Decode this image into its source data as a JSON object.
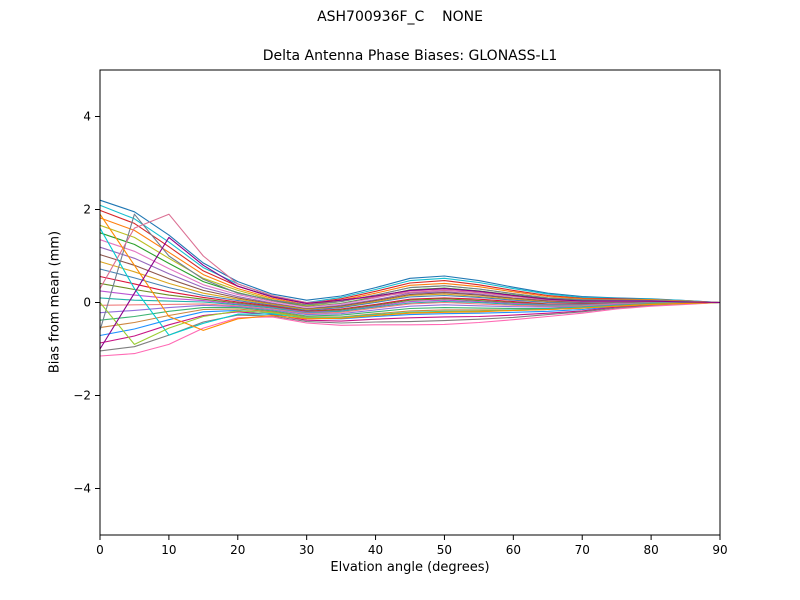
{
  "chart_data": {
    "type": "line",
    "title": "ASH700936F_C    NONE",
    "axes_title": "Delta Antenna Phase Biases: GLONASS-L1",
    "xlabel": "Elvation angle (degrees)",
    "ylabel": "Bias from mean (mm)",
    "xlim": [
      0,
      90
    ],
    "ylim": [
      -5,
      5
    ],
    "xticks": [
      0,
      10,
      20,
      30,
      40,
      50,
      60,
      70,
      80,
      90
    ],
    "yticks": [
      -4,
      -2,
      0,
      2,
      4
    ],
    "grid": false,
    "legend": "none",
    "axis_color": "#000000",
    "x": [
      0,
      5,
      10,
      15,
      20,
      25,
      30,
      35,
      40,
      45,
      50,
      55,
      60,
      65,
      70,
      75,
      80,
      85,
      90
    ],
    "series": [
      {
        "color": "#1f77b4",
        "y": [
          2.2,
          1.95,
          1.45,
          0.85,
          0.45,
          0.18,
          0.05,
          0.14,
          0.32,
          0.52,
          0.57,
          0.47,
          0.33,
          0.2,
          0.13,
          0.1,
          0.08,
          0.04,
          0.0
        ]
      },
      {
        "color": "#17becf",
        "y": [
          2.09,
          1.8,
          1.3,
          0.75,
          0.4,
          0.14,
          0.0,
          0.11,
          0.28,
          0.47,
          0.52,
          0.43,
          0.3,
          0.18,
          0.11,
          0.09,
          0.07,
          0.04,
          0.0
        ]
      },
      {
        "color": "#d62728",
        "y": [
          1.98,
          1.7,
          1.2,
          0.68,
          0.35,
          0.12,
          -0.02,
          0.08,
          0.24,
          0.42,
          0.47,
          0.38,
          0.26,
          0.15,
          0.09,
          0.08,
          0.06,
          0.03,
          0.0
        ]
      },
      {
        "color": "#ff7f0e",
        "y": [
          1.82,
          1.55,
          1.08,
          0.6,
          0.3,
          0.09,
          -0.05,
          0.05,
          0.2,
          0.37,
          0.41,
          0.34,
          0.23,
          0.13,
          0.08,
          0.06,
          0.06,
          0.03,
          0.0
        ]
      },
      {
        "color": "#bcbd22",
        "y": [
          1.66,
          1.4,
          0.95,
          0.52,
          0.26,
          0.06,
          -0.07,
          0.02,
          0.16,
          0.32,
          0.36,
          0.29,
          0.19,
          0.1,
          0.06,
          0.05,
          0.05,
          0.02,
          0.0
        ]
      },
      {
        "color": "#2ca02c",
        "y": [
          1.5,
          1.25,
          0.84,
          0.45,
          0.21,
          0.04,
          -0.09,
          -0.02,
          0.12,
          0.27,
          0.31,
          0.25,
          0.16,
          0.08,
          0.04,
          0.04,
          0.04,
          0.02,
          0.0
        ]
      },
      {
        "color": "#e377c2",
        "y": [
          1.35,
          1.1,
          0.73,
          0.38,
          0.17,
          0.02,
          -0.1,
          -0.03,
          0.1,
          0.25,
          0.28,
          0.22,
          0.14,
          0.06,
          0.03,
          0.03,
          0.04,
          0.02,
          0.0
        ]
      },
      {
        "color": "#9467bd",
        "y": [
          1.19,
          0.95,
          0.62,
          0.32,
          0.13,
          -0.01,
          -0.13,
          -0.06,
          0.06,
          0.2,
          0.23,
          0.18,
          0.1,
          0.04,
          0.01,
          0.02,
          0.03,
          0.01,
          0.0
        ]
      },
      {
        "color": "#8c564b",
        "y": [
          1.03,
          0.8,
          0.51,
          0.26,
          0.1,
          -0.03,
          -0.14,
          -0.08,
          0.04,
          0.17,
          0.21,
          0.16,
          0.09,
          0.03,
          0.0,
          0.02,
          0.02,
          0.01,
          0.0
        ]
      },
      {
        "color": "#daa520",
        "y": [
          0.88,
          0.66,
          0.41,
          0.2,
          0.07,
          -0.04,
          -0.15,
          -0.1,
          0.02,
          0.15,
          0.18,
          0.13,
          0.07,
          0.01,
          -0.01,
          0.01,
          0.02,
          0.01,
          0.0
        ]
      },
      {
        "color": "#4682b4",
        "y": [
          0.72,
          0.53,
          0.32,
          0.15,
          0.04,
          -0.06,
          -0.17,
          -0.11,
          0.0,
          0.12,
          0.15,
          0.11,
          0.05,
          0.0,
          -0.01,
          0.0,
          0.02,
          0.01,
          0.0
        ]
      },
      {
        "color": "#dc143c",
        "y": [
          0.56,
          0.4,
          0.23,
          0.11,
          0.01,
          -0.08,
          -0.19,
          -0.14,
          -0.04,
          0.07,
          0.1,
          0.07,
          0.02,
          -0.03,
          -0.03,
          -0.01,
          0.01,
          0.0,
          0.0
        ]
      },
      {
        "color": "#6b8e23",
        "y": [
          0.41,
          0.28,
          0.16,
          0.07,
          -0.01,
          -0.1,
          -0.2,
          -0.16,
          -0.06,
          0.05,
          0.08,
          0.04,
          0.0,
          -0.04,
          -0.04,
          -0.01,
          0.0,
          0.0,
          0.0
        ]
      },
      {
        "color": "#ba55d3",
        "y": [
          0.25,
          0.16,
          0.09,
          0.04,
          -0.03,
          -0.11,
          -0.21,
          -0.18,
          -0.08,
          0.02,
          0.05,
          0.02,
          -0.02,
          -0.05,
          -0.05,
          -0.02,
          0.0,
          0.0,
          0.0
        ]
      },
      {
        "color": "#20b2aa",
        "y": [
          0.1,
          0.05,
          0.03,
          0.01,
          -0.05,
          -0.12,
          -0.23,
          -0.19,
          -0.1,
          -0.01,
          0.02,
          0.0,
          -0.04,
          -0.06,
          -0.06,
          -0.03,
          0.0,
          0.0,
          0.0
        ]
      },
      {
        "color": "#f08080",
        "y": [
          -0.06,
          -0.05,
          -0.04,
          -0.03,
          -0.07,
          -0.14,
          -0.24,
          -0.21,
          -0.12,
          -0.03,
          0.0,
          -0.03,
          -0.06,
          -0.08,
          -0.07,
          -0.03,
          -0.01,
          0.0,
          0.0
        ]
      },
      {
        "color": "#9370db",
        "y": [
          -0.22,
          -0.17,
          -0.11,
          -0.06,
          -0.09,
          -0.16,
          -0.26,
          -0.24,
          -0.16,
          -0.08,
          -0.05,
          -0.07,
          -0.09,
          -0.1,
          -0.09,
          -0.04,
          -0.02,
          -0.01,
          0.0
        ]
      },
      {
        "color": "#3cb371",
        "y": [
          -0.38,
          -0.3,
          -0.19,
          -0.11,
          -0.11,
          -0.18,
          -0.29,
          -0.27,
          -0.2,
          -0.13,
          -0.11,
          -0.12,
          -0.13,
          -0.13,
          -0.1,
          -0.06,
          -0.02,
          -0.01,
          0.0
        ]
      },
      {
        "color": "#cd853f",
        "y": [
          -0.54,
          -0.43,
          -0.28,
          -0.15,
          -0.14,
          -0.2,
          -0.31,
          -0.31,
          -0.24,
          -0.18,
          -0.16,
          -0.16,
          -0.16,
          -0.15,
          -0.12,
          -0.07,
          -0.03,
          -0.02,
          0.0
        ]
      },
      {
        "color": "#1e90ff",
        "y": [
          -0.71,
          -0.57,
          -0.37,
          -0.2,
          -0.17,
          -0.23,
          -0.34,
          -0.35,
          -0.3,
          -0.26,
          -0.24,
          -0.23,
          -0.21,
          -0.19,
          -0.15,
          -0.09,
          -0.04,
          -0.02,
          0.0
        ]
      },
      {
        "color": "#c71585",
        "y": [
          -0.87,
          -0.72,
          -0.48,
          -0.28,
          -0.2,
          -0.26,
          -0.38,
          -0.4,
          -0.36,
          -0.33,
          -0.31,
          -0.3,
          -0.27,
          -0.23,
          -0.18,
          -0.1,
          -0.06,
          -0.03,
          0.0
        ]
      },
      {
        "color": "#7f7f7f",
        "y": [
          -1.04,
          -0.95,
          -0.7,
          -0.42,
          -0.27,
          -0.29,
          -0.41,
          -0.44,
          -0.42,
          -0.41,
          -0.39,
          -0.36,
          -0.32,
          -0.26,
          -0.2,
          -0.12,
          -0.07,
          -0.03,
          0.0
        ]
      },
      {
        "color": "#ff69b4",
        "y": [
          -1.15,
          -1.1,
          -0.9,
          -0.55,
          -0.33,
          -0.31,
          -0.44,
          -0.49,
          -0.48,
          -0.48,
          -0.47,
          -0.43,
          -0.37,
          -0.3,
          -0.23,
          -0.14,
          -0.08,
          -0.04,
          0.0
        ]
      },
      {
        "color": "#708090",
        "y": [
          -0.6,
          1.9,
          1.0,
          0.5,
          0.2,
          0.05,
          -0.05,
          0.02,
          0.16,
          0.32,
          0.36,
          0.29,
          0.19,
          0.1,
          0.06,
          0.05,
          0.04,
          0.02,
          0.0
        ]
      },
      {
        "color": "#00ced1",
        "y": [
          1.6,
          0.3,
          -0.7,
          -0.45,
          -0.25,
          -0.25,
          -0.32,
          -0.32,
          -0.26,
          -0.21,
          -0.19,
          -0.19,
          -0.16,
          -0.14,
          -0.11,
          -0.07,
          -0.04,
          -0.02,
          0.0
        ]
      },
      {
        "color": "#9acd32",
        "y": [
          0.0,
          -0.9,
          -0.55,
          -0.3,
          -0.18,
          -0.22,
          -0.33,
          -0.33,
          -0.27,
          -0.22,
          -0.2,
          -0.19,
          -0.17,
          -0.15,
          -0.12,
          -0.08,
          -0.04,
          -0.02,
          0.0
        ]
      },
      {
        "color": "#db7093",
        "y": [
          0.3,
          1.6,
          1.9,
          1.0,
          0.4,
          0.15,
          0.0,
          0.05,
          0.12,
          0.22,
          0.26,
          0.21,
          0.13,
          0.06,
          0.02,
          0.02,
          0.03,
          0.01,
          0.0
        ]
      },
      {
        "color": "#ff8c00",
        "y": [
          1.9,
          0.8,
          -0.3,
          -0.6,
          -0.35,
          -0.28,
          -0.35,
          -0.34,
          -0.28,
          -0.23,
          -0.21,
          -0.2,
          -0.17,
          -0.15,
          -0.12,
          -0.08,
          -0.04,
          -0.02,
          0.0
        ]
      },
      {
        "color": "#8b008b",
        "y": [
          -1.0,
          0.2,
          1.4,
          0.8,
          0.35,
          0.12,
          -0.02,
          0.05,
          0.14,
          0.26,
          0.3,
          0.24,
          0.15,
          0.07,
          0.03,
          0.03,
          0.03,
          0.01,
          0.0
        ]
      }
    ]
  }
}
